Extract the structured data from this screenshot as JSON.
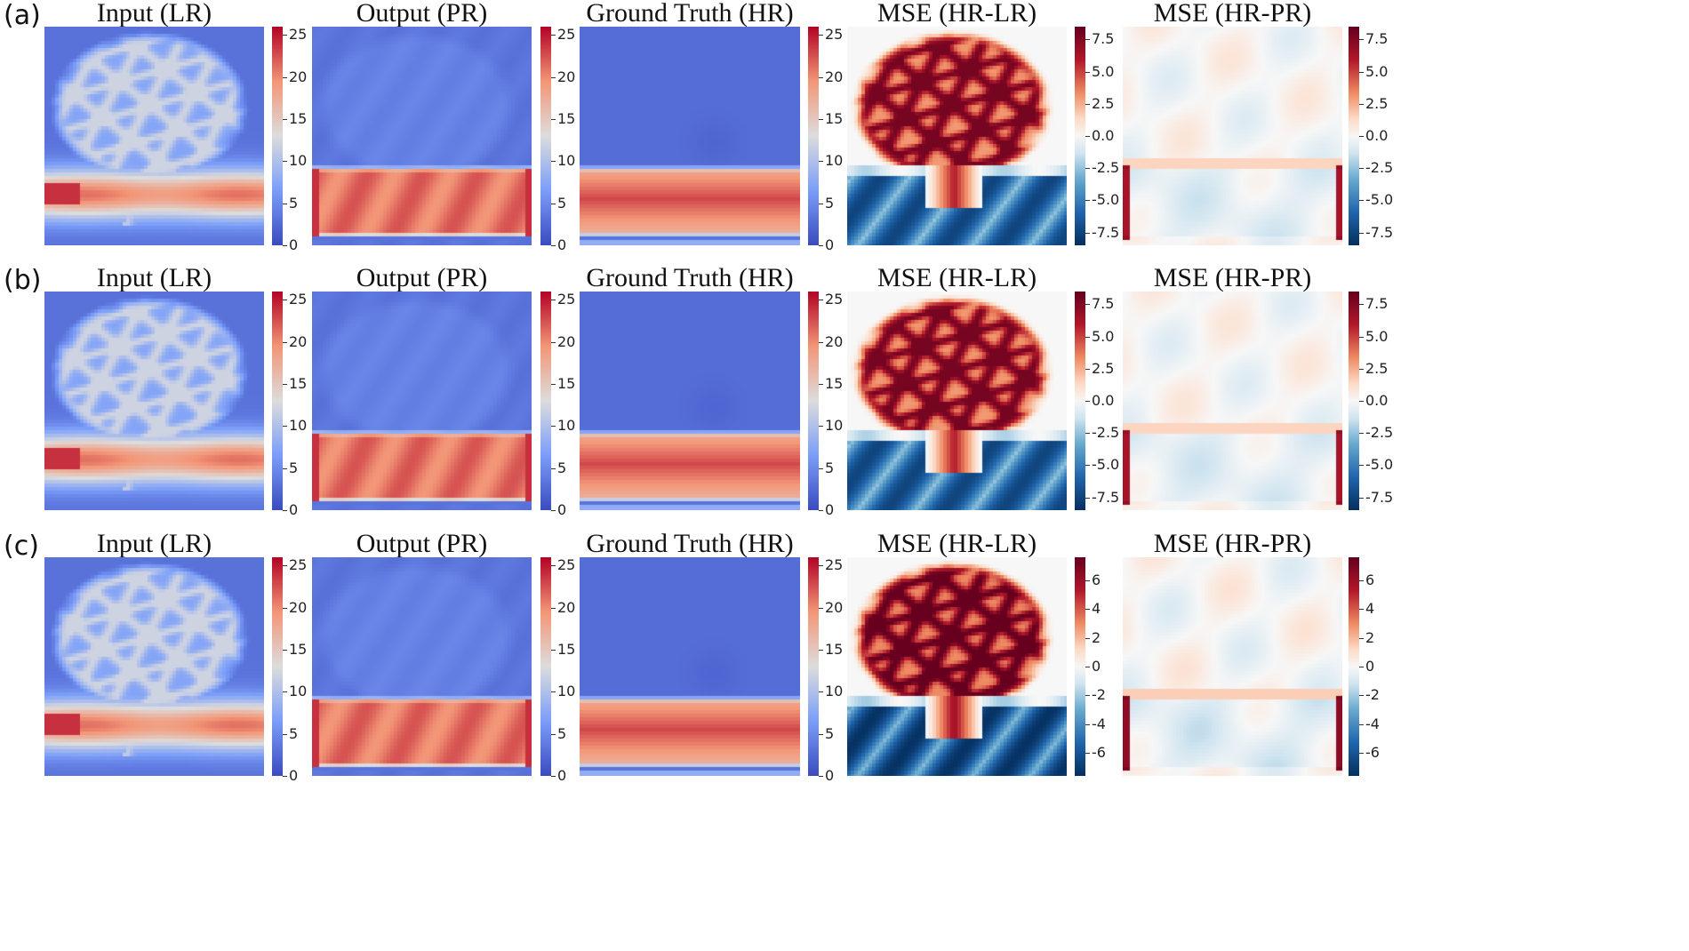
{
  "figure": {
    "rows": [
      {
        "label": "(a)",
        "panels": [
          {
            "title": "Input (LR)",
            "field": "lr",
            "colorbar": {
              "cmap": "coolwarm",
              "vmin": 0,
              "vmax": 26,
              "ticks": [
                {
                  "v": 0,
                  "t": "0"
                },
                {
                  "v": 5,
                  "t": "5"
                },
                {
                  "v": 10,
                  "t": "10"
                },
                {
                  "v": 15,
                  "t": "15"
                },
                {
                  "v": 20,
                  "t": "20"
                },
                {
                  "v": 25,
                  "t": "25"
                }
              ]
            }
          },
          {
            "title": "Output (PR)",
            "field": "pr",
            "colorbar": {
              "cmap": "coolwarm",
              "vmin": 0,
              "vmax": 26,
              "ticks": [
                {
                  "v": 0,
                  "t": "0"
                },
                {
                  "v": 5,
                  "t": "5"
                },
                {
                  "v": 10,
                  "t": "10"
                },
                {
                  "v": 15,
                  "t": "15"
                },
                {
                  "v": 20,
                  "t": "20"
                },
                {
                  "v": 25,
                  "t": "25"
                }
              ]
            }
          },
          {
            "title": "Ground Truth (HR)",
            "field": "hr",
            "colorbar": {
              "cmap": "coolwarm",
              "vmin": 0,
              "vmax": 26,
              "ticks": [
                {
                  "v": 0,
                  "t": "0"
                },
                {
                  "v": 5,
                  "t": "5"
                },
                {
                  "v": 10,
                  "t": "10"
                },
                {
                  "v": 15,
                  "t": "15"
                },
                {
                  "v": 20,
                  "t": "20"
                },
                {
                  "v": 25,
                  "t": "25"
                }
              ]
            }
          },
          {
            "title": "MSE (HR-LR)",
            "field": "dlr",
            "colorbar": {
              "cmap": "RdBu_r",
              "vmin": -8.5,
              "vmax": 8.5,
              "ticks": [
                {
                  "v": -7.5,
                  "t": "-7.5"
                },
                {
                  "v": -5,
                  "t": "-5.0"
                },
                {
                  "v": -2.5,
                  "t": "-2.5"
                },
                {
                  "v": 0,
                  "t": "0.0"
                },
                {
                  "v": 2.5,
                  "t": "2.5"
                },
                {
                  "v": 5,
                  "t": "5.0"
                },
                {
                  "v": 7.5,
                  "t": "7.5"
                }
              ]
            }
          },
          {
            "title": "MSE (HR-PR)",
            "field": "dpr",
            "colorbar": {
              "cmap": "RdBu_r",
              "vmin": -8.5,
              "vmax": 8.5,
              "ticks": [
                {
                  "v": -7.5,
                  "t": "-7.5"
                },
                {
                  "v": -5,
                  "t": "-5.0"
                },
                {
                  "v": -2.5,
                  "t": "-2.5"
                },
                {
                  "v": 0,
                  "t": "0.0"
                },
                {
                  "v": 2.5,
                  "t": "2.5"
                },
                {
                  "v": 5,
                  "t": "5.0"
                },
                {
                  "v": 7.5,
                  "t": "7.5"
                }
              ]
            }
          }
        ]
      },
      {
        "label": "(b)",
        "panels": [
          {
            "title": "Input (LR)",
            "field": "lr",
            "colorbar": {
              "cmap": "coolwarm",
              "vmin": 0,
              "vmax": 26,
              "ticks": [
                {
                  "v": 0,
                  "t": "0"
                },
                {
                  "v": 5,
                  "t": "5"
                },
                {
                  "v": 10,
                  "t": "10"
                },
                {
                  "v": 15,
                  "t": "15"
                },
                {
                  "v": 20,
                  "t": "20"
                },
                {
                  "v": 25,
                  "t": "25"
                }
              ]
            }
          },
          {
            "title": "Output (PR)",
            "field": "pr",
            "colorbar": {
              "cmap": "coolwarm",
              "vmin": 0,
              "vmax": 26,
              "ticks": [
                {
                  "v": 0,
                  "t": "0"
                },
                {
                  "v": 5,
                  "t": "5"
                },
                {
                  "v": 10,
                  "t": "10"
                },
                {
                  "v": 15,
                  "t": "15"
                },
                {
                  "v": 20,
                  "t": "20"
                },
                {
                  "v": 25,
                  "t": "25"
                }
              ]
            }
          },
          {
            "title": "Ground Truth (HR)",
            "field": "hr",
            "colorbar": {
              "cmap": "coolwarm",
              "vmin": 0,
              "vmax": 26,
              "ticks": [
                {
                  "v": 0,
                  "t": "0"
                },
                {
                  "v": 5,
                  "t": "5"
                },
                {
                  "v": 10,
                  "t": "10"
                },
                {
                  "v": 15,
                  "t": "15"
                },
                {
                  "v": 20,
                  "t": "20"
                },
                {
                  "v": 25,
                  "t": "25"
                }
              ]
            }
          },
          {
            "title": "MSE (HR-LR)",
            "field": "dlr",
            "colorbar": {
              "cmap": "RdBu_r",
              "vmin": -8.5,
              "vmax": 8.5,
              "ticks": [
                {
                  "v": -7.5,
                  "t": "-7.5"
                },
                {
                  "v": -5,
                  "t": "-5.0"
                },
                {
                  "v": -2.5,
                  "t": "-2.5"
                },
                {
                  "v": 0,
                  "t": "0.0"
                },
                {
                  "v": 2.5,
                  "t": "2.5"
                },
                {
                  "v": 5,
                  "t": "5.0"
                },
                {
                  "v": 7.5,
                  "t": "7.5"
                }
              ]
            }
          },
          {
            "title": "MSE (HR-PR)",
            "field": "dpr",
            "colorbar": {
              "cmap": "RdBu_r",
              "vmin": -8.5,
              "vmax": 8.5,
              "ticks": [
                {
                  "v": -7.5,
                  "t": "-7.5"
                },
                {
                  "v": -5,
                  "t": "-5.0"
                },
                {
                  "v": -2.5,
                  "t": "-2.5"
                },
                {
                  "v": 0,
                  "t": "0.0"
                },
                {
                  "v": 2.5,
                  "t": "2.5"
                },
                {
                  "v": 5,
                  "t": "5.0"
                },
                {
                  "v": 7.5,
                  "t": "7.5"
                }
              ]
            }
          }
        ]
      },
      {
        "label": "(c)",
        "panels": [
          {
            "title": "Input (LR)",
            "field": "lr",
            "colorbar": {
              "cmap": "coolwarm",
              "vmin": 0,
              "vmax": 26,
              "ticks": [
                {
                  "v": 0,
                  "t": "0"
                },
                {
                  "v": 5,
                  "t": "5"
                },
                {
                  "v": 10,
                  "t": "10"
                },
                {
                  "v": 15,
                  "t": "15"
                },
                {
                  "v": 20,
                  "t": "20"
                },
                {
                  "v": 25,
                  "t": "25"
                }
              ]
            }
          },
          {
            "title": "Output (PR)",
            "field": "pr",
            "colorbar": {
              "cmap": "coolwarm",
              "vmin": 0,
              "vmax": 26,
              "ticks": [
                {
                  "v": 0,
                  "t": "0"
                },
                {
                  "v": 5,
                  "t": "5"
                },
                {
                  "v": 10,
                  "t": "10"
                },
                {
                  "v": 15,
                  "t": "15"
                },
                {
                  "v": 20,
                  "t": "20"
                },
                {
                  "v": 25,
                  "t": "25"
                }
              ]
            }
          },
          {
            "title": "Ground Truth (HR)",
            "field": "hr",
            "colorbar": {
              "cmap": "coolwarm",
              "vmin": 0,
              "vmax": 26,
              "ticks": [
                {
                  "v": 0,
                  "t": "0"
                },
                {
                  "v": 5,
                  "t": "5"
                },
                {
                  "v": 10,
                  "t": "10"
                },
                {
                  "v": 15,
                  "t": "15"
                },
                {
                  "v": 20,
                  "t": "20"
                },
                {
                  "v": 25,
                  "t": "25"
                }
              ]
            }
          },
          {
            "title": "MSE (HR-LR)",
            "field": "dlr",
            "colorbar": {
              "cmap": "RdBu_r",
              "vmin": -7.6,
              "vmax": 7.6,
              "ticks": [
                {
                  "v": -6,
                  "t": "-6"
                },
                {
                  "v": -4,
                  "t": "-4"
                },
                {
                  "v": -2,
                  "t": "-2"
                },
                {
                  "v": 0,
                  "t": "0"
                },
                {
                  "v": 2,
                  "t": "2"
                },
                {
                  "v": 4,
                  "t": "4"
                },
                {
                  "v": 6,
                  "t": "6"
                }
              ]
            }
          },
          {
            "title": "MSE (HR-PR)",
            "field": "dpr",
            "colorbar": {
              "cmap": "RdBu_r",
              "vmin": -7.6,
              "vmax": 7.6,
              "ticks": [
                {
                  "v": -6,
                  "t": "-6"
                },
                {
                  "v": -4,
                  "t": "-4"
                },
                {
                  "v": -2,
                  "t": "-2"
                },
                {
                  "v": 0,
                  "t": "0"
                },
                {
                  "v": 2,
                  "t": "2"
                },
                {
                  "v": 4,
                  "t": "4"
                },
                {
                  "v": 6,
                  "t": "6"
                }
              ]
            }
          }
        ]
      }
    ]
  }
}
